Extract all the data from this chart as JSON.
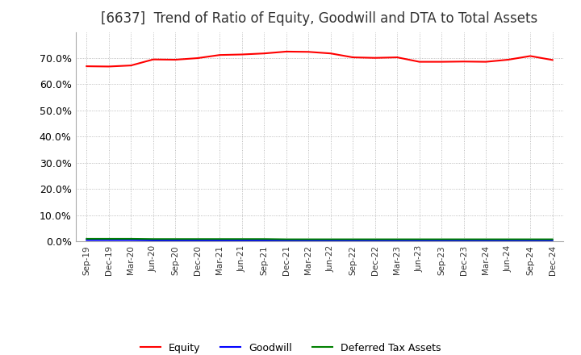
{
  "title": "[6637]  Trend of Ratio of Equity, Goodwill and DTA to Total Assets",
  "x_labels": [
    "Sep-19",
    "Dec-19",
    "Mar-20",
    "Jun-20",
    "Sep-20",
    "Dec-20",
    "Mar-21",
    "Jun-21",
    "Sep-21",
    "Dec-21",
    "Mar-22",
    "Jun-22",
    "Sep-22",
    "Dec-22",
    "Mar-23",
    "Jun-23",
    "Sep-23",
    "Dec-23",
    "Mar-24",
    "Jun-24",
    "Sep-24",
    "Dec-24"
  ],
  "equity": [
    0.669,
    0.668,
    0.672,
    0.695,
    0.694,
    0.7,
    0.712,
    0.714,
    0.718,
    0.725,
    0.724,
    0.718,
    0.703,
    0.701,
    0.703,
    0.686,
    0.686,
    0.687,
    0.686,
    0.694,
    0.708,
    0.693
  ],
  "goodwill": [
    0.005,
    0.005,
    0.005,
    0.004,
    0.004,
    0.004,
    0.004,
    0.004,
    0.004,
    0.004,
    0.004,
    0.004,
    0.004,
    0.004,
    0.004,
    0.004,
    0.004,
    0.004,
    0.004,
    0.004,
    0.004,
    0.004
  ],
  "dta": [
    0.01,
    0.01,
    0.01,
    0.009,
    0.009,
    0.009,
    0.009,
    0.009,
    0.009,
    0.008,
    0.008,
    0.008,
    0.008,
    0.008,
    0.008,
    0.008,
    0.008,
    0.008,
    0.008,
    0.008,
    0.008,
    0.008
  ],
  "equity_color": "#ff0000",
  "goodwill_color": "#0000ff",
  "dta_color": "#008000",
  "ylim": [
    0.0,
    0.8
  ],
  "yticks": [
    0.0,
    0.1,
    0.2,
    0.3,
    0.4,
    0.5,
    0.6,
    0.7
  ],
  "background_color": "#ffffff",
  "grid_color": "#aaaaaa",
  "title_fontsize": 12,
  "legend_labels": [
    "Equity",
    "Goodwill",
    "Deferred Tax Assets"
  ]
}
